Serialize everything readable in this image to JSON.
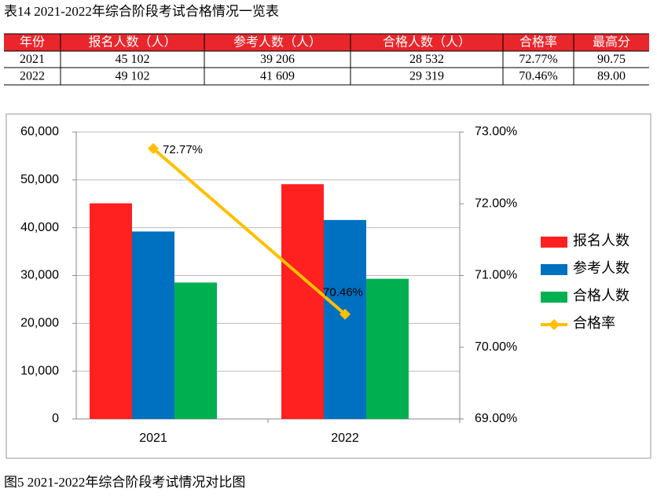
{
  "table_caption": "表14  2021-2022年综合阶段考试合格情况一览表",
  "table": {
    "header": [
      "年份",
      "报名人数（人）",
      "参考人数（人）",
      "合格人数（人）",
      "合格率",
      "最高分"
    ],
    "rows": [
      [
        "2021",
        "45 102",
        "39 206",
        "28 532",
        "72.77%",
        "90.75"
      ],
      [
        "2022",
        "49 102",
        "41 609",
        "29 319",
        "70.46%",
        "89.00"
      ]
    ]
  },
  "chart_data": {
    "type": "bar",
    "categories": [
      "2021",
      "2022"
    ],
    "series": [
      {
        "name": "报名人数",
        "color": "#ff2020",
        "values": [
          45102,
          49102
        ]
      },
      {
        "name": "参考人数",
        "color": "#0070c0",
        "values": [
          39206,
          41609
        ]
      },
      {
        "name": "合格人数",
        "color": "#00b050",
        "values": [
          28532,
          29319
        ]
      },
      {
        "name": "合格率",
        "color": "#ffc000",
        "type": "line",
        "axis": "y2",
        "values": [
          72.77,
          70.46
        ],
        "value_labels": [
          "72.77%",
          "70.46%"
        ]
      }
    ],
    "ylim": [
      0,
      60000
    ],
    "yticks": [
      0,
      {
        "value": 10000,
        "label": "10,000"
      },
      {
        "value": 20000,
        "label": "20,000"
      },
      {
        "value": 30000,
        "label": "30,000"
      },
      {
        "value": 40000,
        "label": "40,000"
      },
      {
        "value": 50000,
        "label": "50,000"
      },
      {
        "value": 60000,
        "label": "60,000"
      }
    ],
    "y2lim": [
      69,
      73
    ],
    "y2ticks": [
      {
        "value": 69,
        "label": "69.00%"
      },
      {
        "value": 70,
        "label": "70.00%"
      },
      {
        "value": 71,
        "label": "71.00%"
      },
      {
        "value": 72,
        "label": "72.00%"
      },
      {
        "value": 73,
        "label": "73.00%"
      }
    ],
    "grid": true,
    "legend": "right"
  },
  "figure_caption": "图5  2021-2022年综合阶段考试情况对比图"
}
